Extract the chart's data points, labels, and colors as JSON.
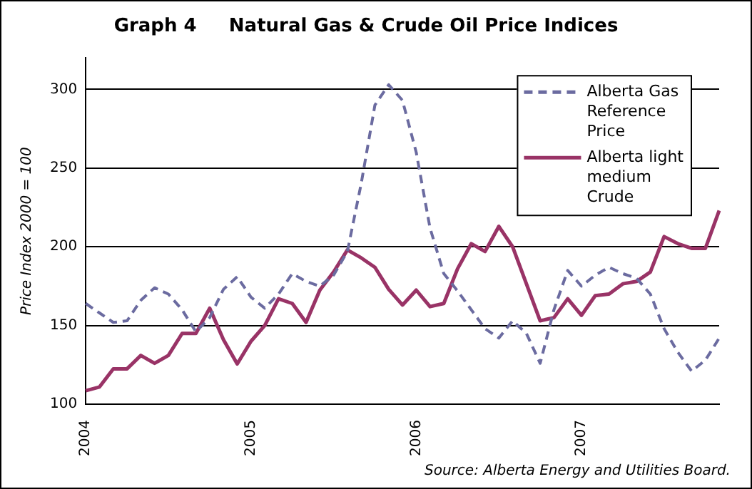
{
  "chart_data": {
    "type": "line",
    "title": "Graph 4     Natural Gas & Crude Oil Price Indices",
    "ylabel": "Price Index 2000 = 100",
    "categories": [
      "2004",
      null,
      null,
      null,
      null,
      null,
      null,
      null,
      null,
      null,
      null,
      null,
      "2005",
      null,
      null,
      null,
      null,
      null,
      null,
      null,
      null,
      null,
      null,
      null,
      "2006",
      null,
      null,
      null,
      null,
      null,
      null,
      null,
      null,
      null,
      null,
      null,
      "2007",
      null,
      null,
      null,
      null,
      null,
      null,
      null,
      null,
      null,
      null
    ],
    "series": [
      {
        "name": "Alberta Gas Reference Price",
        "color": "#6b6ba0",
        "line_style": "dashed",
        "values": [
          164,
          158,
          152,
          153,
          166,
          174,
          170,
          160,
          146,
          155,
          173,
          181,
          168,
          161,
          170,
          183,
          178,
          175,
          182,
          197,
          240,
          290,
          303,
          293,
          260,
          212,
          183,
          172,
          160,
          148,
          142,
          153,
          145,
          126,
          160,
          185,
          175,
          182,
          187,
          183,
          180,
          170,
          148,
          133,
          121,
          128,
          142
        ]
      },
      {
        "name": "Alberta light medium Crude",
        "color": "#993366",
        "line_style": "solid",
        "values": [
          108.6,
          111,
          122.5,
          122.5,
          131,
          126,
          131,
          145,
          145,
          161,
          141,
          125.6,
          140,
          150,
          167,
          164,
          152,
          172.5,
          184,
          198,
          193,
          187,
          173,
          163,
          172.5,
          162,
          164,
          186,
          202,
          197,
          213,
          200,
          176.5,
          153,
          155,
          167,
          156.5,
          169,
          170,
          176.5,
          178,
          184,
          206.5,
          202,
          199,
          199,
          223
        ]
      }
    ],
    "ylim": [
      100,
      320
    ],
    "yticks": [
      100,
      150,
      200,
      250,
      300
    ],
    "grid": "y",
    "legend": "top right",
    "marker": "none",
    "annotations": [
      "Source: Alberta Energy and Utilities Board."
    ]
  }
}
